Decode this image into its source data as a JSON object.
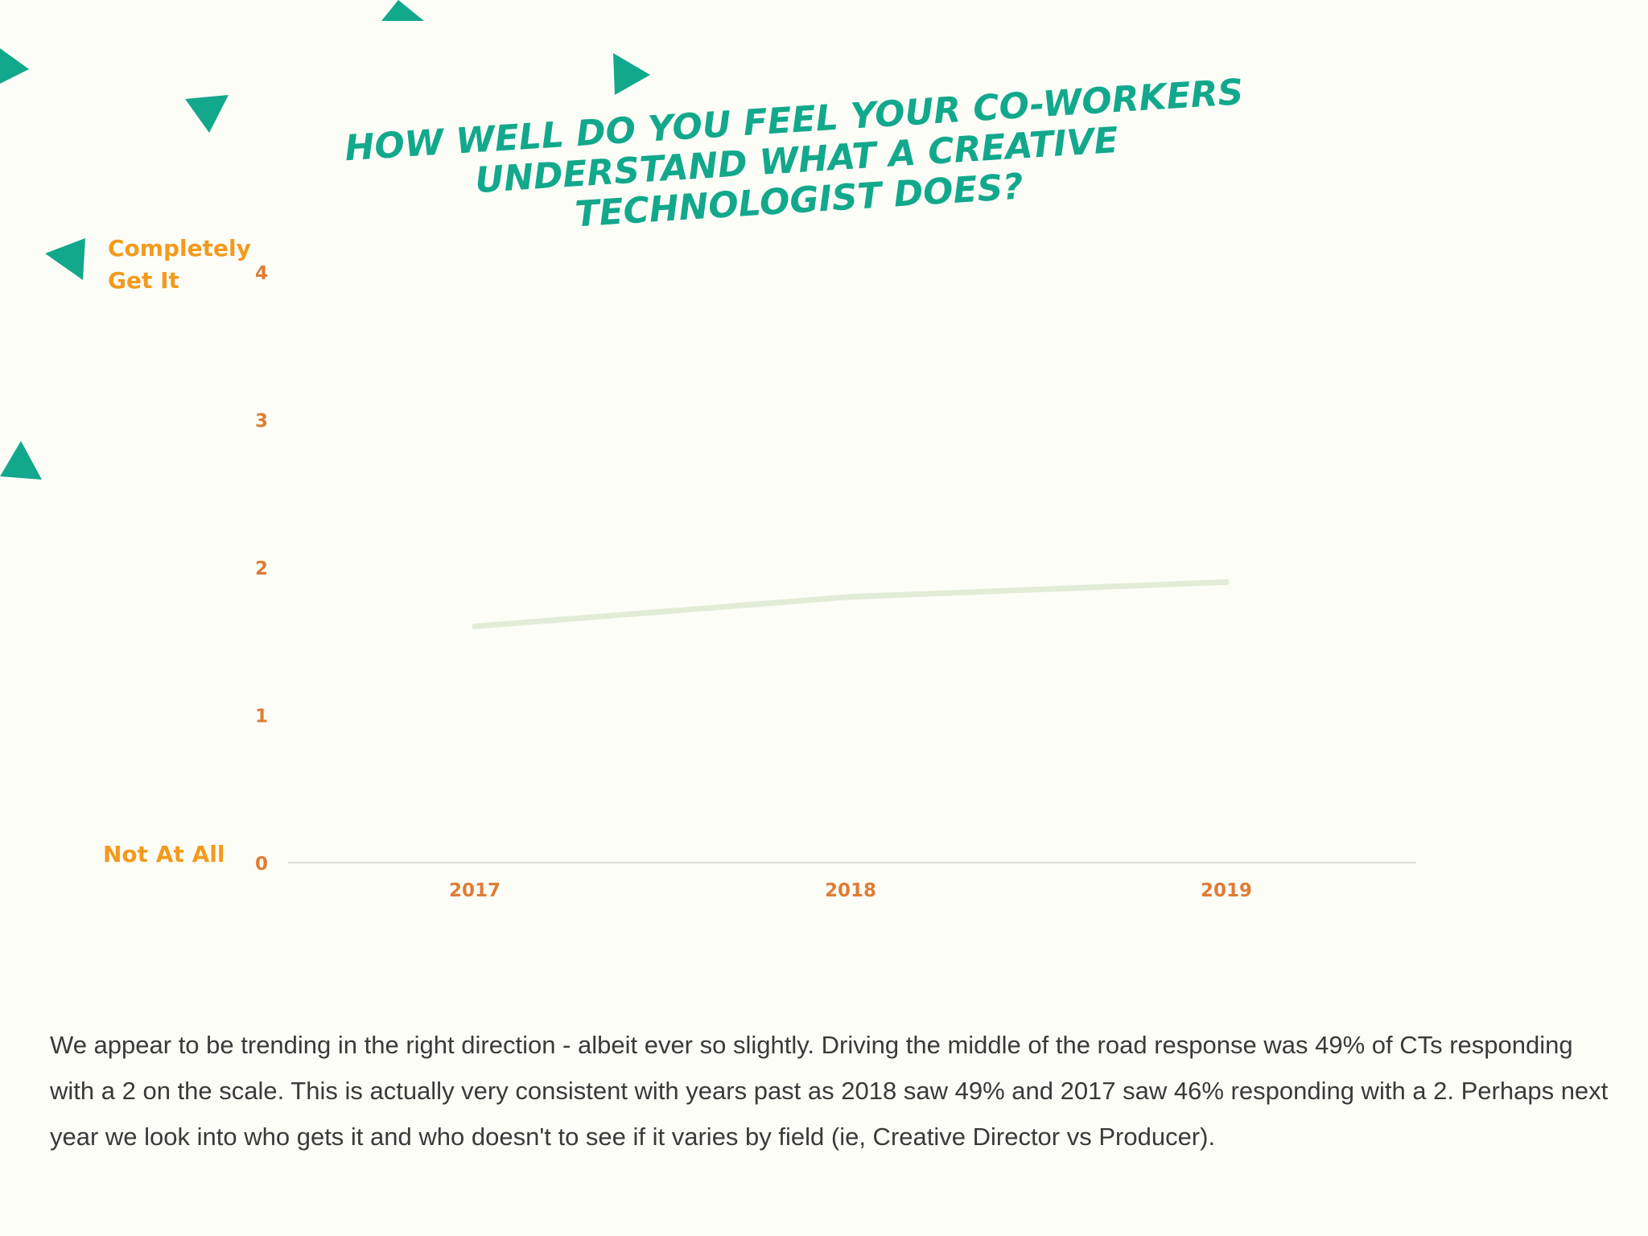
{
  "colors": {
    "background": "#fdfdf7",
    "accent_teal": "#12a88c",
    "label_orange": "#f29a1d",
    "tick_orange": "#e07c35",
    "line_green": "#e2ecd8",
    "axis": "#dcdcd4",
    "caption_text": "#3a3a3a"
  },
  "decorations": {
    "icon": "triangle-icon"
  },
  "chart_data": {
    "type": "line",
    "title": "HOW WELL DO YOU FEEL YOUR CO-WORKERS UNDERSTAND WHAT A CREATIVE TECHNOLOGIST DOES?",
    "categories": [
      "2017",
      "2018",
      "2019"
    ],
    "series": [
      {
        "values": [
          1.6,
          1.8,
          1.9
        ]
      }
    ],
    "ylim": [
      0,
      4
    ],
    "yticks": [
      "0",
      "1",
      "2",
      "3",
      "4"
    ],
    "y_scale_labels": {
      "top": "Completely Get It",
      "bottom": "Not At All"
    },
    "grid": false,
    "legend": "none"
  },
  "caption": "We appear to be trending in the right direction - albeit ever so slightly. Driving the middle of the road response was 49% of CTs responding with a 2 on the scale. This is actually very consistent with years past as 2018 saw 49% and 2017 saw 46%  responding with a 2. Perhaps next year we look into who gets it and who doesn't to see if it varies by field (ie, Creative Director vs Producer)."
}
